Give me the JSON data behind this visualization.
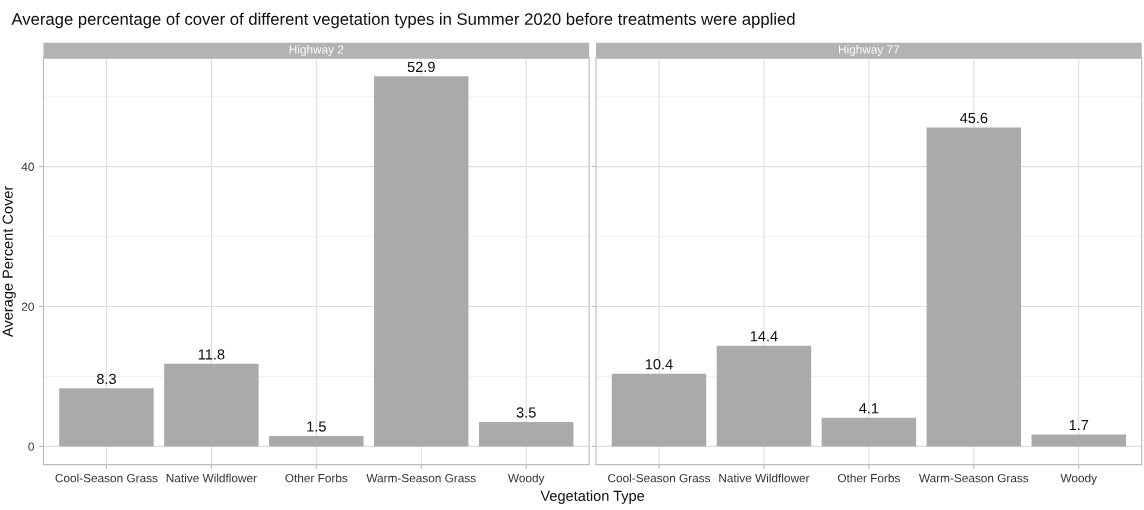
{
  "chart_data": [
    {
      "type": "bar",
      "title": "Average percentage of cover of different vegetation types in Summer 2020 before treatments were applied",
      "subtitle": "Highway 2",
      "xlabel": "Vegetation Type",
      "ylabel": "Average Percent Cover",
      "categories": [
        "Cool-Season Grass",
        "Native Wildflower",
        "Other Forbs",
        "Warm-Season Grass",
        "Woody"
      ],
      "values": [
        8.3,
        11.8,
        1.5,
        52.9,
        3.5
      ],
      "color": "#aaaaaa",
      "data_labels": true,
      "ylim": [
        -2.6,
        55.5
      ],
      "yticks": [
        0,
        {
          "value": 10,
          "label": null
        },
        20,
        {
          "value": 30,
          "label": null
        },
        40,
        {
          "value": 50,
          "label": null
        }
      ],
      "grid": true
    },
    {
      "type": "bar",
      "subtitle": "Highway 77",
      "categories": [
        "Cool-Season Grass",
        "Native Wildflower",
        "Other Forbs",
        "Warm-Season Grass",
        "Woody"
      ],
      "values": [
        10.4,
        14.4,
        4.1,
        45.6,
        1.7
      ],
      "color": "#aaaaaa",
      "data_labels": true,
      "ylim": [
        -2.6,
        55.5
      ],
      "yticks": [
        0,
        {
          "value": 10,
          "label": null
        },
        20,
        {
          "value": 30,
          "label": null
        },
        40,
        {
          "value": 50,
          "label": null
        }
      ],
      "grid": true,
      "tick_labels": "x"
    }
  ]
}
